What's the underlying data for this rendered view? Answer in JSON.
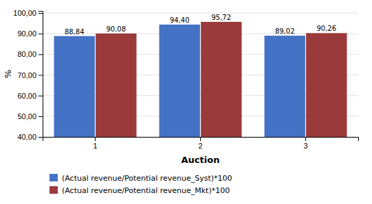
{
  "chart_data": {
    "type": "bar",
    "categories": [
      "1",
      "2",
      "3"
    ],
    "series": [
      {
        "name": "(Actual revenue/Potential revenue_Syst)*100",
        "color": "#4472C4",
        "values": [
          88.84,
          94.4,
          89.02
        ],
        "value_labels": [
          "88,84",
          "94,40",
          "89,02"
        ]
      },
      {
        "name": "(Actual revenue/Potential revenue_Mkt)*100",
        "color": "#9B3A3A",
        "values": [
          90.08,
          95.72,
          90.26
        ],
        "value_labels": [
          "90,08",
          "95,72",
          "90,26"
        ]
      }
    ],
    "xlabel": "Auction",
    "ylabel": "%",
    "ylim": [
      40,
      101
    ],
    "yticks": [
      {
        "value": 40.0,
        "label": "40,00"
      },
      {
        "value": 50.0,
        "label": "50,00"
      },
      {
        "value": 60.0,
        "label": "60,00"
      },
      {
        "value": 70.0,
        "label": "70,00"
      },
      {
        "value": 80.0,
        "label": "80,00"
      },
      {
        "value": 90.0,
        "label": "90,00"
      },
      {
        "value": 100.0,
        "label": "100,00"
      }
    ],
    "grid": true,
    "data_labels": true,
    "legend": "lower left"
  }
}
